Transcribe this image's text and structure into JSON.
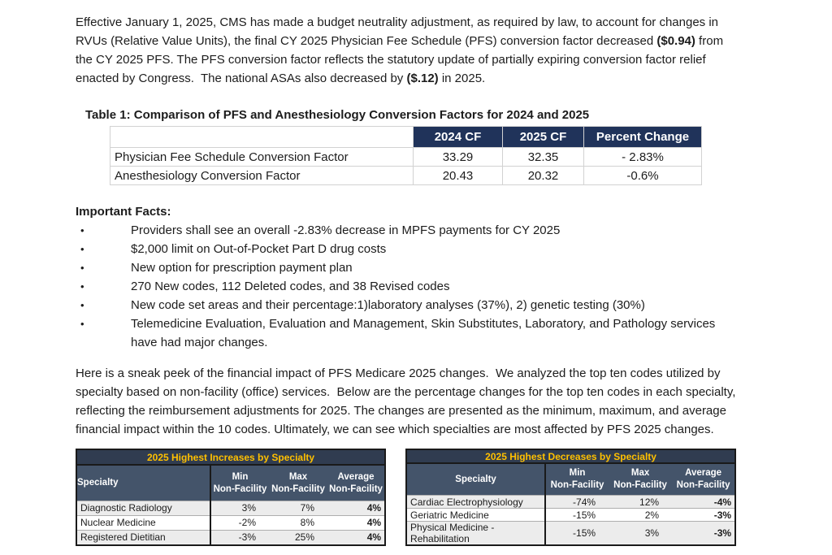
{
  "bullet_char": "•",
  "intro": {
    "s1": "Effective January 1, 2025, CMS has made a budget neutrality adjustment, as required by law, to account for changes in RVUs (Relative Value Units), the final CY 2025 Physician Fee Schedule (PFS) conversion factor decreased ",
    "b1": "($0.94)",
    "s2": " from the CY 2025 PFS. The PFS conversion factor reflects the statutory update of partially expiring conversion factor relief enacted by Congress.  The national ASAs also decreased by ",
    "b2": "($.12)",
    "s3": " in 2025."
  },
  "table1": {
    "title": "Table 1: Comparison of PFS and Anesthesiology Conversion Factors for 2024 and 2025",
    "headers": [
      "",
      "2024 CF",
      "2025 CF",
      "Percent Change"
    ],
    "rows": [
      {
        "label": "Physician Fee Schedule Conversion Factor",
        "cf2024": "33.29",
        "cf2025": "32.35",
        "pct": "- 2.83%"
      },
      {
        "label": "Anesthesiology Conversion Factor",
        "cf2024": "20.43",
        "cf2025": "20.32",
        "pct": "-0.6%"
      }
    ]
  },
  "facts": {
    "heading": "Important Facts:",
    "bullets": [
      "Providers shall see an overall -2.83% decrease in MPFS payments for CY 2025",
      "$2,000 limit on Out-of-Pocket Part D drug costs",
      "New option for prescription payment plan",
      "270 New codes, 112 Deleted codes, and 38 Revised codes",
      "New code set areas and their percentage:1)laboratory analyses (37%), 2) genetic testing (30%)",
      "Telemedicine Evaluation, Evaluation and Management, Skin Substitutes, Laboratory, and Pathology services have had major changes."
    ]
  },
  "sneak_peek": "Here is a sneak peek of the financial impact of PFS Medicare 2025 changes.  We analyzed the top ten codes utilized by specialty based on non-facility (office) services.  Below are the percentage changes for the top ten codes in each specialty, reflecting the reimbursement adjustments for 2025. The changes are presented as the minimum, maximum, and average financial impact within the 10 codes. Ultimately, we can see which specialties are most affected by PFS 2025 changes.",
  "increases": {
    "title": "2025 Highest Increases by Specialty",
    "header": {
      "specialty": "Specialty",
      "min_l1": "Min",
      "min_l2": "Non-Facility",
      "max_l1": "Max",
      "max_l2": "Non-Facility",
      "avg_l1": "Average",
      "avg_l2": "Non-Facility"
    },
    "rows": [
      {
        "specialty": "Diagnostic Radiology",
        "min": "3%",
        "max": "7%",
        "avg": "4%"
      },
      {
        "specialty": "Nuclear Medicine",
        "min": "-2%",
        "max": "8%",
        "avg": "4%"
      },
      {
        "specialty": "Registered Dietitian",
        "min": "-3%",
        "max": "25%",
        "avg": "4%"
      }
    ]
  },
  "decreases": {
    "title": "2025 Highest Decreases by Specialty",
    "header": {
      "specialty": "Specialty",
      "min_l1": "Min",
      "min_l2": "Non-Facility",
      "max_l1": "Max",
      "max_l2": "Non-Facility",
      "avg_l1": "Average",
      "avg_l2": "Non-Facility"
    },
    "rows": [
      {
        "specialty": "Cardiac Electrophysiology",
        "min": "-74%",
        "max": "12%",
        "avg": "-4%"
      },
      {
        "specialty": "Geriatric Medicine",
        "min": "-15%",
        "max": "2%",
        "avg": "-3%"
      },
      {
        "specialty": "Physical Medicine - Rehabilitation",
        "min": "-15%",
        "max": "3%",
        "avg": "-3%"
      }
    ]
  },
  "colors": {
    "table1_header_bg": "#20335a",
    "panel_title_bg": "#303c50",
    "panel_title_text": "#ffc000",
    "panel_header_bg": "#44546a",
    "row_alt_bg": "#ececec"
  }
}
